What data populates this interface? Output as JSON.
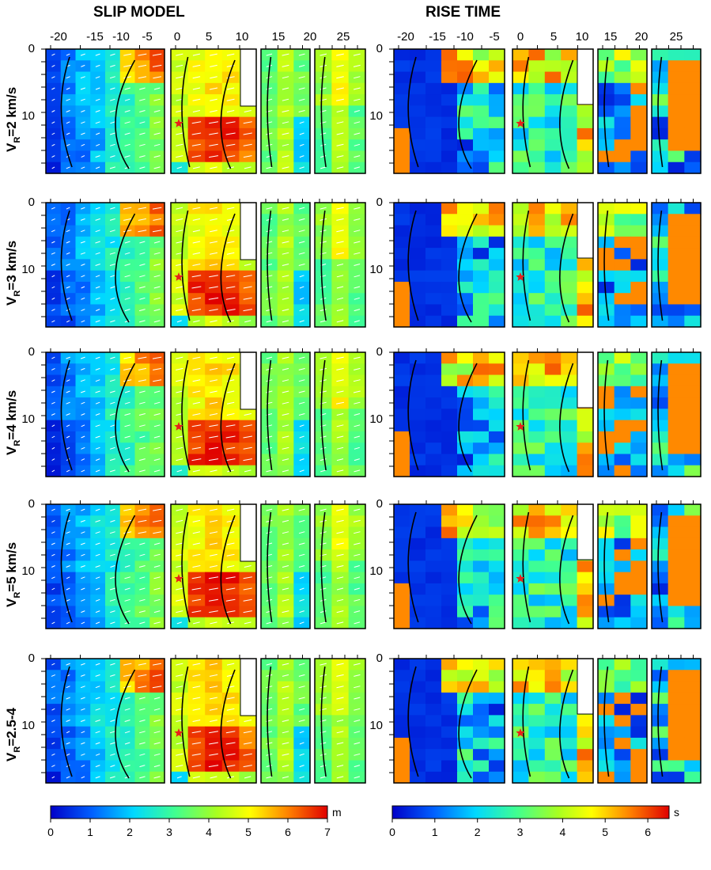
{
  "titles": {
    "slip": "SLIP MODEL",
    "rise": "RISE TIME"
  },
  "colors": {
    "hypocenter": "#e8201a",
    "contour": "#000000",
    "vector": "#ffffff",
    "background": "#ffffff"
  },
  "x_ticks": [
    "-20",
    "-15",
    "-10",
    "-5",
    "0",
    "5",
    "10",
    "15",
    "20",
    "25"
  ],
  "y_ticks": [
    "0",
    "10"
  ],
  "rows": [
    {
      "label": "V_R=2 km/s",
      "prefix": "V",
      "sub": "R",
      "suffix": "=2 km/s"
    },
    {
      "label": "V_R=3 km/s",
      "prefix": "V",
      "sub": "R",
      "suffix": "=3 km/s"
    },
    {
      "label": "V_R=4 km/s",
      "prefix": "V",
      "sub": "R",
      "suffix": "=4 km/s"
    },
    {
      "label": "V_R=5 km/s",
      "prefix": "V",
      "sub": "R",
      "suffix": "=5 km/s"
    },
    {
      "label": "V_R=2.5-4",
      "prefix": "V",
      "sub": "R",
      "suffix": "=2.5-4"
    }
  ],
  "colorbars": {
    "slip": {
      "unit": "m",
      "ticks": [
        "0",
        "1",
        "2",
        "3",
        "4",
        "5",
        "6",
        "7"
      ],
      "min": 0,
      "max": 7
    },
    "rise": {
      "unit": "s",
      "ticks": [
        "0",
        "1",
        "2",
        "3",
        "4",
        "5",
        "6"
      ],
      "min": 0,
      "max": 6.5
    }
  },
  "chart_data": [
    {
      "type": "heatmap",
      "title": "SLIP MODEL",
      "unit": "m",
      "x_axis_ticks": [
        -20,
        -15,
        -10,
        -5,
        0,
        5,
        10,
        15,
        20,
        25
      ],
      "y_axis_ticks": [
        0,
        10
      ],
      "panels": 5,
      "hypocenter_approx": [
        0,
        11
      ],
      "peak_slip_approx_m": [
        6.5,
        6.5,
        6.0,
        6.5,
        6.0
      ],
      "vmin": 0,
      "vmax": 7
    },
    {
      "type": "heatmap",
      "title": "RISE TIME",
      "unit": "s",
      "x_axis_ticks": [
        -20,
        -15,
        -10,
        -5,
        0,
        5,
        10,
        15,
        20,
        25
      ],
      "y_axis_ticks": [
        0,
        10
      ],
      "panels": 5,
      "hypocenter_approx": [
        0,
        11
      ],
      "vmin": 0,
      "vmax": 6.5
    }
  ]
}
